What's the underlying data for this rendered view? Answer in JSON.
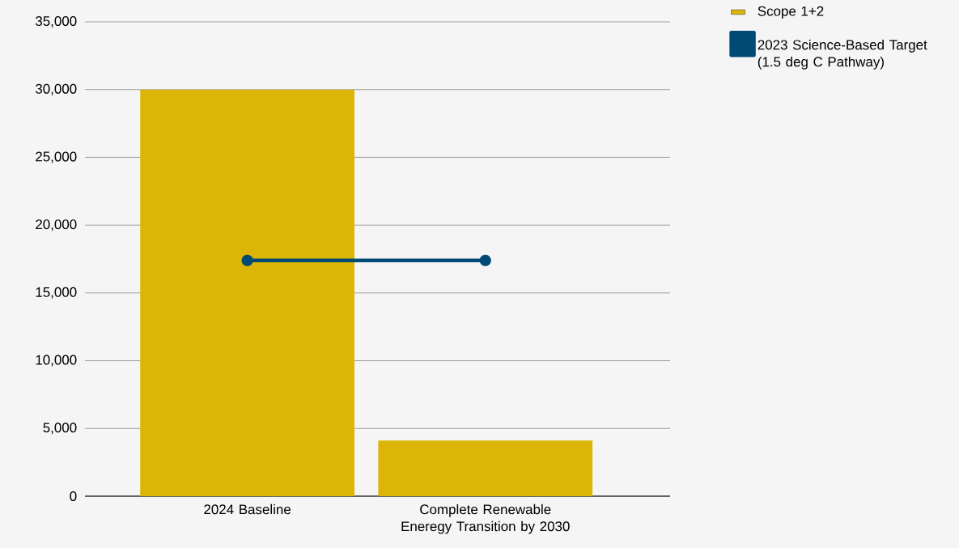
{
  "chart_data": {
    "type": "bar",
    "categories": [
      "2024 Baseline",
      "Complete Renewable Eneregy Transition by 2030"
    ],
    "series": [
      {
        "name": "Scope 1+2",
        "color": "#ddb506",
        "values": [
          30000,
          4100
        ]
      },
      {
        "name": "2023 Science-Based Target (1.5 deg C Pathway)",
        "type": "line",
        "color": "#004a75",
        "marker": "circle",
        "values": [
          17400,
          17400
        ]
      }
    ],
    "ylim": [
      0,
      35000
    ],
    "yticks": [
      0,
      {
        "value": 5000,
        "label": "5,000"
      },
      {
        "value": 10000,
        "label": "10,000"
      },
      {
        "value": 15000,
        "label": "15,000"
      },
      {
        "value": 20000,
        "label": "20,000"
      },
      {
        "value": 25000,
        "label": "25,000"
      },
      {
        "value": 30000,
        "label": "30,000"
      },
      {
        "value": 35000,
        "label": "35,000"
      }
    ],
    "grid": "y",
    "legend": "top right"
  }
}
